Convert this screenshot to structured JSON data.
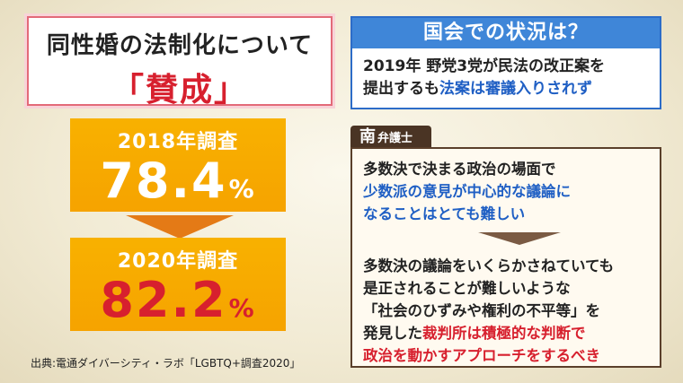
{
  "title": {
    "line1": "同性婚の法制化について",
    "line2": "「賛成」"
  },
  "surveys": [
    {
      "label": "2018年調査",
      "value": "78.4",
      "unit": "%"
    },
    {
      "label": "2020年調査",
      "value": "82.2",
      "unit": "%"
    }
  ],
  "source_note": "出典:電通ダイバーシティ・ラボ「LGBTQ+調査2020」",
  "diet": {
    "header": "国会での状況は？",
    "line1": "2019年 野党3党が民法の改正案を",
    "line2_plain": "提出するも",
    "line2_highlight": "法案は審議入りされず"
  },
  "lawyer": {
    "name": "南",
    "title": "弁護士",
    "p1_line1": "多数決で決まる政治の場面で",
    "p1_line2": "少数派の意見が中心的な議論に",
    "p1_line3": "なることはとても難しい",
    "p2_line1": "多数決の議論をいくらかさねていても",
    "p2_line2": "是正されることが難しいような",
    "p2_line3": "「社会のひずみや権利の不平等」を",
    "p2_line4_plain": "発見した",
    "p2_line4_highlight": "裁判所は積極的な判断で",
    "p2_line5": "政治を動かすアプローチをするべき"
  },
  "colors": {
    "accent_red": "#d7202e",
    "survey_orange": "#f6a300",
    "arrow_orange": "#e47a16",
    "diet_blue": "#3f86d8",
    "lawyer_brown": "#4a3424"
  }
}
